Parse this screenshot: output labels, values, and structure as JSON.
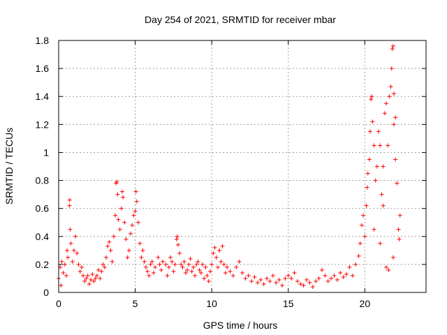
{
  "chart_data": {
    "type": "scatter",
    "title": "Day 254 of 2021, SRMTID for receiver mbar",
    "xlabel": "GPS time / hours",
    "ylabel": "SRMTID / TECUs",
    "xlim": [
      0,
      24
    ],
    "ylim": [
      0,
      1.8
    ],
    "x_ticks": [
      0,
      5,
      10,
      15,
      20
    ],
    "x_tick_labels": [
      "0",
      "5",
      "10",
      "15",
      "20"
    ],
    "y_ticks": [
      0,
      0.2,
      0.4,
      0.6,
      0.8,
      1,
      1.2,
      1.4,
      1.6,
      1.8
    ],
    "y_tick_labels": [
      "0",
      "0.2",
      "0.4",
      "0.6",
      "0.8",
      "1",
      "1.2",
      "1.4",
      "1.6",
      "1.8"
    ],
    "grid": true,
    "marker": "+",
    "color": "#ff0000",
    "series": [
      {
        "name": "SRMTID",
        "points": [
          [
            0.0,
            0.1
          ],
          [
            0.1,
            0.18
          ],
          [
            0.15,
            0.05
          ],
          [
            0.2,
            0.22
          ],
          [
            0.3,
            0.14
          ],
          [
            0.4,
            0.2
          ],
          [
            0.5,
            0.12
          ],
          [
            0.55,
            0.3
          ],
          [
            0.6,
            0.25
          ],
          [
            0.7,
            0.62
          ],
          [
            0.72,
            0.66
          ],
          [
            0.75,
            0.45
          ],
          [
            0.8,
            0.35
          ],
          [
            0.9,
            0.22
          ],
          [
            1.0,
            0.3
          ],
          [
            1.1,
            0.4
          ],
          [
            1.2,
            0.28
          ],
          [
            1.3,
            0.2
          ],
          [
            1.4,
            0.15
          ],
          [
            1.5,
            0.18
          ],
          [
            1.6,
            0.12
          ],
          [
            1.7,
            0.08
          ],
          [
            1.8,
            0.1
          ],
          [
            1.9,
            0.12
          ],
          [
            2.0,
            0.06
          ],
          [
            2.1,
            0.09
          ],
          [
            2.2,
            0.13
          ],
          [
            2.3,
            0.08
          ],
          [
            2.4,
            0.1
          ],
          [
            2.5,
            0.12
          ],
          [
            2.6,
            0.16
          ],
          [
            2.7,
            0.1
          ],
          [
            2.8,
            0.15
          ],
          [
            2.9,
            0.2
          ],
          [
            3.0,
            0.18
          ],
          [
            3.1,
            0.25
          ],
          [
            3.2,
            0.33
          ],
          [
            3.3,
            0.36
          ],
          [
            3.4,
            0.3
          ],
          [
            3.5,
            0.22
          ],
          [
            3.6,
            0.4
          ],
          [
            3.7,
            0.55
          ],
          [
            3.75,
            0.78
          ],
          [
            3.8,
            0.79
          ],
          [
            3.85,
            0.7
          ],
          [
            3.9,
            0.52
          ],
          [
            4.0,
            0.45
          ],
          [
            4.1,
            0.6
          ],
          [
            4.15,
            0.72
          ],
          [
            4.2,
            0.68
          ],
          [
            4.3,
            0.5
          ],
          [
            4.4,
            0.38
          ],
          [
            4.5,
            0.25
          ],
          [
            4.6,
            0.3
          ],
          [
            4.7,
            0.42
          ],
          [
            4.8,
            0.48
          ],
          [
            4.9,
            0.55
          ],
          [
            5.0,
            0.58
          ],
          [
            5.05,
            0.72
          ],
          [
            5.1,
            0.65
          ],
          [
            5.2,
            0.5
          ],
          [
            5.3,
            0.35
          ],
          [
            5.4,
            0.25
          ],
          [
            5.5,
            0.3
          ],
          [
            5.6,
            0.22
          ],
          [
            5.7,
            0.18
          ],
          [
            5.8,
            0.15
          ],
          [
            5.9,
            0.12
          ],
          [
            6.0,
            0.2
          ],
          [
            6.1,
            0.22
          ],
          [
            6.2,
            0.14
          ],
          [
            6.3,
            0.18
          ],
          [
            6.5,
            0.25
          ],
          [
            6.6,
            0.2
          ],
          [
            6.7,
            0.16
          ],
          [
            6.8,
            0.22
          ],
          [
            7.0,
            0.2
          ],
          [
            7.1,
            0.12
          ],
          [
            7.2,
            0.18
          ],
          [
            7.3,
            0.25
          ],
          [
            7.4,
            0.22
          ],
          [
            7.5,
            0.15
          ],
          [
            7.6,
            0.2
          ],
          [
            7.7,
            0.38
          ],
          [
            7.75,
            0.4
          ],
          [
            7.8,
            0.34
          ],
          [
            7.9,
            0.28
          ],
          [
            8.0,
            0.2
          ],
          [
            8.1,
            0.18
          ],
          [
            8.2,
            0.22
          ],
          [
            8.3,
            0.14
          ],
          [
            8.4,
            0.16
          ],
          [
            8.5,
            0.2
          ],
          [
            8.6,
            0.24
          ],
          [
            8.7,
            0.15
          ],
          [
            8.8,
            0.18
          ],
          [
            8.9,
            0.12
          ],
          [
            9.0,
            0.2
          ],
          [
            9.1,
            0.22
          ],
          [
            9.2,
            0.16
          ],
          [
            9.3,
            0.14
          ],
          [
            9.4,
            0.2
          ],
          [
            9.5,
            0.1
          ],
          [
            9.6,
            0.18
          ],
          [
            9.7,
            0.12
          ],
          [
            9.8,
            0.08
          ],
          [
            9.9,
            0.15
          ],
          [
            10.0,
            0.2
          ],
          [
            10.1,
            0.28
          ],
          [
            10.2,
            0.32
          ],
          [
            10.3,
            0.25
          ],
          [
            10.4,
            0.18
          ],
          [
            10.5,
            0.3
          ],
          [
            10.6,
            0.22
          ],
          [
            10.7,
            0.33
          ],
          [
            10.8,
            0.2
          ],
          [
            10.9,
            0.14
          ],
          [
            11.0,
            0.18
          ],
          [
            11.2,
            0.15
          ],
          [
            11.4,
            0.12
          ],
          [
            11.6,
            0.18
          ],
          [
            11.8,
            0.22
          ],
          [
            12.0,
            0.14
          ],
          [
            12.2,
            0.1
          ],
          [
            12.4,
            0.12
          ],
          [
            12.6,
            0.08
          ],
          [
            12.8,
            0.11
          ],
          [
            13.0,
            0.07
          ],
          [
            13.2,
            0.09
          ],
          [
            13.4,
            0.06
          ],
          [
            13.6,
            0.1
          ],
          [
            13.8,
            0.08
          ],
          [
            14.0,
            0.12
          ],
          [
            14.2,
            0.07
          ],
          [
            14.4,
            0.09
          ],
          [
            14.6,
            0.05
          ],
          [
            14.8,
            0.1
          ],
          [
            15.0,
            0.12
          ],
          [
            15.2,
            0.1
          ],
          [
            15.4,
            0.14
          ],
          [
            15.6,
            0.08
          ],
          [
            15.8,
            0.06
          ],
          [
            16.0,
            0.05
          ],
          [
            16.2,
            0.09
          ],
          [
            16.4,
            0.07
          ],
          [
            16.6,
            0.04
          ],
          [
            16.8,
            0.08
          ],
          [
            17.0,
            0.1
          ],
          [
            17.2,
            0.16
          ],
          [
            17.4,
            0.12
          ],
          [
            17.6,
            0.08
          ],
          [
            17.8,
            0.1
          ],
          [
            18.0,
            0.12
          ],
          [
            18.2,
            0.09
          ],
          [
            18.4,
            0.14
          ],
          [
            18.6,
            0.11
          ],
          [
            18.8,
            0.13
          ],
          [
            19.0,
            0.18
          ],
          [
            19.2,
            0.12
          ],
          [
            19.4,
            0.2
          ],
          [
            19.6,
            0.26
          ],
          [
            19.7,
            0.35
          ],
          [
            19.8,
            0.48
          ],
          [
            19.9,
            0.55
          ],
          [
            20.0,
            0.4
          ],
          [
            20.1,
            0.62
          ],
          [
            20.15,
            0.75
          ],
          [
            20.2,
            0.85
          ],
          [
            20.3,
            0.95
          ],
          [
            20.35,
            1.15
          ],
          [
            20.4,
            1.38
          ],
          [
            20.45,
            1.4
          ],
          [
            20.5,
            1.22
          ],
          [
            20.6,
            1.05
          ],
          [
            20.7,
            0.8
          ],
          [
            20.8,
            0.9
          ],
          [
            20.9,
            1.15
          ],
          [
            21.0,
            1.05
          ],
          [
            21.1,
            0.7
          ],
          [
            21.2,
            0.9
          ],
          [
            21.3,
            1.28
          ],
          [
            21.4,
            1.35
          ],
          [
            21.5,
            1.05
          ],
          [
            21.6,
            1.4
          ],
          [
            21.7,
            1.47
          ],
          [
            21.75,
            1.6
          ],
          [
            21.8,
            1.74
          ],
          [
            21.85,
            1.76
          ],
          [
            21.9,
            1.2
          ],
          [
            22.0,
            0.95
          ],
          [
            22.1,
            0.78
          ],
          [
            22.2,
            0.45
          ],
          [
            22.25,
            0.38
          ],
          [
            22.3,
            0.55
          ],
          [
            21.4,
            0.18
          ],
          [
            21.55,
            0.16
          ],
          [
            21.0,
            0.35
          ],
          [
            21.2,
            0.62
          ],
          [
            20.6,
            0.45
          ],
          [
            21.85,
            0.25
          ],
          [
            22.0,
            1.25
          ],
          [
            21.9,
            1.42
          ]
        ]
      }
    ]
  }
}
